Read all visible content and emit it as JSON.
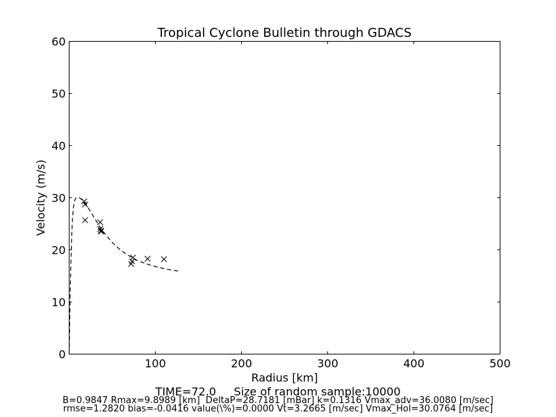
{
  "chart_data": {
    "type": "scatter",
    "title": "Tropical Cyclone Bulletin through GDACS",
    "xlabel": "Radius [km]",
    "ylabel": "Velocity (m/s)",
    "xlim": [
      0,
      500
    ],
    "ylim": [
      0,
      60
    ],
    "x_ticks": [
      100,
      200,
      300,
      400,
      500
    ],
    "y_ticks": [
      0,
      10,
      20,
      30,
      40,
      50,
      60
    ],
    "grid": false,
    "legend": "none",
    "series": [
      {
        "kind": "line",
        "style": "dashed",
        "color": "#000000",
        "x": [
          0,
          1,
          2,
          3,
          4,
          5,
          6,
          7,
          8,
          9.9,
          12,
          15,
          20,
          25,
          30,
          35,
          40,
          50,
          60,
          70,
          80,
          90,
          100,
          110,
          120,
          128
        ],
        "y": [
          0,
          9.5,
          17.5,
          23,
          26.3,
          28.2,
          29.2,
          29.7,
          29.95,
          30.08,
          30.0,
          29.6,
          28.6,
          27.3,
          25.9,
          24.6,
          23.4,
          21.4,
          19.9,
          18.8,
          17.9,
          17.3,
          16.8,
          16.4,
          16.1,
          15.9
        ]
      },
      {
        "kind": "scatter",
        "marker": "x",
        "color": "#000000",
        "x": [
          17.5,
          18.5,
          18.5,
          36,
          36,
          37,
          37,
          72,
          73,
          74,
          91,
          110
        ],
        "y": [
          29.3,
          28.7,
          25.7,
          25.3,
          24,
          23.5,
          23.7,
          17.3,
          17.8,
          18.5,
          18.3,
          18.2
        ]
      }
    ]
  },
  "captions": {
    "time": "TIME=72.0     Size of random sample:10000",
    "params_1": "B=0.9847 Rmax=9.8989 [km]  DeltaP=28.7181 [mBar] k=0.1316 Vmax_adv=36.0080 [m/sec]",
    "params_2": "rmse=1.2820 bias=-0.0416 value(\\%)=0.0000 Vt=3.2665 [m/sec] Vmax_Hol=30.0764 [m/sec]"
  }
}
